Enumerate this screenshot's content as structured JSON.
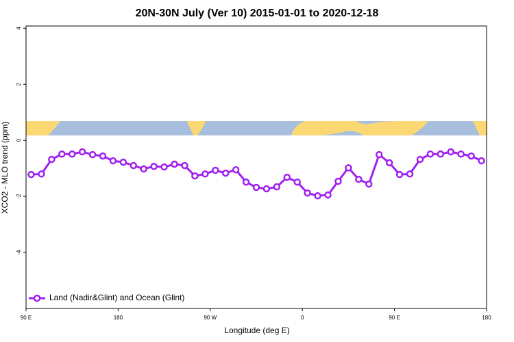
{
  "chart_data": {
    "type": "line",
    "title": "20N-30N July (Ver 10)   2015-01-01 to 2020-12-18",
    "x_label": "Longitude (deg E)",
    "y_label": "XCO2 - MLO trend (ppm)",
    "x": [
      95,
      105,
      115,
      125,
      135,
      145,
      155,
      165,
      175,
      185,
      195,
      205,
      215,
      225,
      235,
      245,
      255,
      265,
      275,
      285,
      295,
      305,
      315,
      325,
      335,
      345,
      355,
      365,
      375,
      385,
      395,
      405,
      415,
      425,
      435,
      445,
      455,
      465,
      475,
      485,
      495,
      505,
      515,
      525,
      535
    ],
    "series": [
      {
        "name": "Land (Nadir&Glint) and Ocean (Glint)",
        "color": "#a020f0",
        "values": [
          -1.22,
          -1.2,
          -0.68,
          -0.49,
          -0.49,
          -0.41,
          -0.51,
          -0.56,
          -0.73,
          -0.78,
          -0.9,
          -1.02,
          -0.93,
          -0.95,
          -0.85,
          -0.9,
          -1.27,
          -1.2,
          -1.07,
          -1.17,
          -1.05,
          -1.49,
          -1.68,
          -1.73,
          -1.66,
          -1.32,
          -1.49,
          -1.88,
          -1.98,
          -1.95,
          -1.46,
          -0.98,
          -1.39,
          -1.56,
          -0.51,
          -0.8,
          -1.22,
          -1.2,
          -0.68,
          -0.49,
          -0.49,
          -0.41,
          -0.49,
          -0.56,
          -0.73
        ]
      }
    ],
    "xlim": [
      90,
      540
    ],
    "xticks": [
      {
        "value": 90,
        "label": "90 E"
      },
      180,
      {
        "value": 270,
        "label": "90 W"
      },
      {
        "value": 360,
        "label": "0"
      },
      {
        "value": 450,
        "label": "90 E"
      },
      180
    ],
    "ylim": [
      -6,
      4.08
    ],
    "yticks": [
      -4,
      -2,
      0,
      2,
      4
    ],
    "legend": "bottom-left"
  }
}
